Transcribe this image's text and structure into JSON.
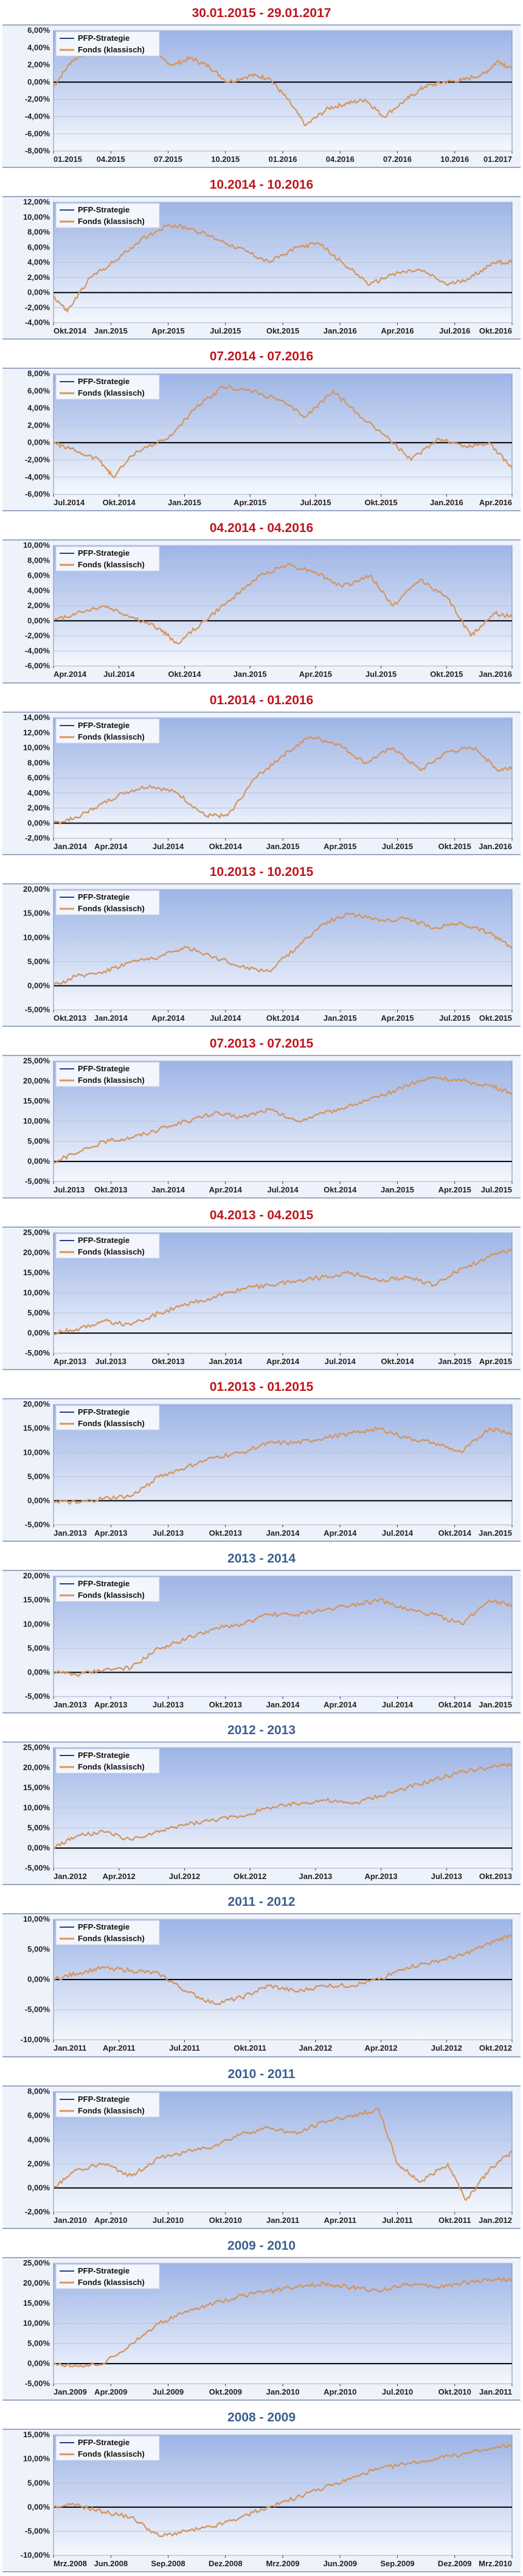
{
  "colors": {
    "strategy": "#1f3f8f",
    "fonds": "#d9955a",
    "plot_top": "#9db4e6",
    "plot_bottom": "#f4f7fd",
    "title_red": "#c0141c",
    "title_blue": "#3b5f8f"
  },
  "legend": {
    "strategy": "PFP-Strategie",
    "fonds": "Fonds (klassisch)"
  },
  "chart_data": [
    {
      "type": "line",
      "title": "30.01.2015 - 29.01.2017",
      "title_color": "red",
      "yticks": [
        "6,00%",
        "4,00%",
        "2,00%",
        "0,00%",
        "-2,00%",
        "-4,00%",
        "-6,00%",
        "-8,00%"
      ],
      "ylim": [
        -8,
        6
      ],
      "xticks": [
        "01.2015",
        "04.2015",
        "07.2015",
        "10.2015",
        "01.2016",
        "04.2016",
        "07.2016",
        "10.2016",
        "01.2017"
      ],
      "series": [
        {
          "name": "Fonds (klassisch)",
          "x": [
            0,
            0.04,
            0.09,
            0.13,
            0.17,
            0.21,
            0.26,
            0.3,
            0.34,
            0.38,
            0.43,
            0.47,
            0.51,
            0.55,
            0.6,
            0.64,
            0.68,
            0.72,
            0.77,
            0.81,
            0.85,
            0.89,
            0.94,
            0.97,
            1.0
          ],
          "values": [
            -0.5,
            2.5,
            4.0,
            4.5,
            3.8,
            3.5,
            2.0,
            2.8,
            1.8,
            0.0,
            0.8,
            0.5,
            -2.0,
            -5.0,
            -3.0,
            -2.5,
            -2.0,
            -4.0,
            -2.0,
            -0.5,
            0.0,
            0.2,
            1.0,
            2.5,
            1.5
          ]
        }
      ]
    },
    {
      "type": "line",
      "title": "10.2014 - 10.2016",
      "title_color": "red",
      "yticks": [
        "12,00%",
        "10,00%",
        "8,00%",
        "6,00%",
        "4,00%",
        "2,00%",
        "0,00%",
        "-2,00%",
        "-4,00%"
      ],
      "ylim": [
        -4,
        12
      ],
      "xticks": [
        "Okt.2014",
        "Jan.2015",
        "Apr.2015",
        "Jul.2015",
        "Okt.2015",
        "Jan.2016",
        "Apr.2016",
        "Jul.2016",
        "Okt.2016"
      ],
      "series": [
        {
          "name": "Fonds (klassisch)",
          "x": [
            0,
            0.03,
            0.08,
            0.13,
            0.19,
            0.25,
            0.3,
            0.36,
            0.42,
            0.47,
            0.53,
            0.58,
            0.63,
            0.69,
            0.74,
            0.8,
            0.86,
            0.91,
            0.96,
            1.0
          ],
          "values": [
            -0.5,
            -2.5,
            2.0,
            4.0,
            7.0,
            9.0,
            8.5,
            7.0,
            5.5,
            4.0,
            6.0,
            6.5,
            4.0,
            1.0,
            2.5,
            3.0,
            1.0,
            2.0,
            4.0,
            4.0
          ]
        }
      ]
    },
    {
      "type": "line",
      "title": "07.2014 - 07.2016",
      "title_color": "red",
      "yticks": [
        "8,00%",
        "6,00%",
        "4,00%",
        "2,00%",
        "0,00%",
        "-2,00%",
        "-4,00%",
        "-6,00%"
      ],
      "ylim": [
        -6,
        8
      ],
      "xticks": [
        "Jul.2014",
        "Okt.2014",
        "Jan.2015",
        "Apr.2015",
        "Jul.2015",
        "Okt.2015",
        "Jan.2016",
        "Apr.2016"
      ],
      "series": [
        {
          "name": "Fonds (klassisch)",
          "x": [
            0,
            0.05,
            0.1,
            0.13,
            0.18,
            0.25,
            0.31,
            0.37,
            0.43,
            0.49,
            0.55,
            0.61,
            0.66,
            0.72,
            0.78,
            0.84,
            0.9,
            0.95,
            1.0
          ],
          "values": [
            0.0,
            -1.0,
            -2.0,
            -4.0,
            -1.0,
            0.5,
            4.0,
            6.5,
            6.0,
            5.0,
            3.0,
            6.0,
            3.5,
            1.0,
            -2.0,
            0.5,
            -0.5,
            0.0,
            -3.0
          ]
        }
      ]
    },
    {
      "type": "line",
      "title": "04.2014 - 04.2016",
      "title_color": "red",
      "yticks": [
        "10,00%",
        "8,00%",
        "6,00%",
        "4,00%",
        "2,00%",
        "0,00%",
        "-2,00%",
        "-4,00%",
        "-6,00%"
      ],
      "ylim": [
        -6,
        10
      ],
      "xticks": [
        "Apr.2014",
        "Jul.2014",
        "Okt.2014",
        "Jan.2015",
        "Apr.2015",
        "Jul.2015",
        "Okt.2015",
        "Jan.2016"
      ],
      "series": [
        {
          "name": "Fonds (klassisch)",
          "x": [
            0,
            0.05,
            0.11,
            0.17,
            0.23,
            0.27,
            0.33,
            0.39,
            0.45,
            0.51,
            0.57,
            0.63,
            0.69,
            0.74,
            0.8,
            0.86,
            0.91,
            0.96,
            1.0
          ],
          "values": [
            0.0,
            1.0,
            2.0,
            0.5,
            -1.0,
            -3.0,
            0.0,
            3.0,
            6.0,
            7.5,
            6.5,
            4.5,
            6.0,
            2.0,
            5.5,
            3.0,
            -2.0,
            1.0,
            0.5
          ]
        }
      ]
    },
    {
      "type": "line",
      "title": "01.2014 - 01.2016",
      "title_color": "red",
      "yticks": [
        "14,00%",
        "12,00%",
        "10,00%",
        "8,00%",
        "6,00%",
        "4,00%",
        "2,00%",
        "0,00%",
        "-2,00%"
      ],
      "ylim": [
        -2,
        14
      ],
      "xticks": [
        "Jan.2014",
        "Apr.2014",
        "Jul.2014",
        "Okt.2014",
        "Jan.2015",
        "Apr.2015",
        "Jul.2015",
        "Okt.2015",
        "Jan.2016"
      ],
      "series": [
        {
          "name": "Fonds (klassisch)",
          "x": [
            0,
            0.04,
            0.09,
            0.15,
            0.21,
            0.27,
            0.33,
            0.38,
            0.44,
            0.5,
            0.56,
            0.62,
            0.68,
            0.74,
            0.8,
            0.86,
            0.92,
            0.97,
            1.0
          ],
          "values": [
            0.0,
            0.5,
            2.0,
            4.0,
            5.0,
            4.0,
            1.0,
            1.0,
            6.0,
            9.0,
            11.5,
            10.5,
            8.0,
            10.0,
            7.0,
            9.5,
            10.0,
            7.0,
            7.5
          ]
        }
      ]
    },
    {
      "type": "line",
      "title": "10.2013 - 10.2015",
      "title_color": "red",
      "yticks": [
        "20,00%",
        "15,00%",
        "10,00%",
        "5,00%",
        "0,00%",
        "-5,00%"
      ],
      "ylim": [
        -5,
        20
      ],
      "xticks": [
        "Okt.2013",
        "Jan.2014",
        "Apr.2014",
        "Jul.2014",
        "Okt.2014",
        "Jan.2015",
        "Apr.2015",
        "Jul.2015",
        "Okt.2015"
      ],
      "series": [
        {
          "name": "Fonds (klassisch)",
          "x": [
            0,
            0.05,
            0.11,
            0.17,
            0.23,
            0.29,
            0.35,
            0.41,
            0.47,
            0.53,
            0.59,
            0.65,
            0.71,
            0.77,
            0.83,
            0.89,
            0.95,
            1.0
          ],
          "values": [
            0.0,
            2.0,
            3.0,
            5.0,
            6.0,
            8.0,
            6.0,
            4.0,
            3.0,
            8.0,
            13.0,
            15.0,
            13.5,
            14.0,
            12.0,
            13.0,
            11.0,
            8.0
          ]
        }
      ]
    },
    {
      "type": "line",
      "title": "07.2013 - 07.2015",
      "title_color": "red",
      "yticks": [
        "25,00%",
        "20,00%",
        "15,00%",
        "10,00%",
        "5,00%",
        "0,00%",
        "-5,00%"
      ],
      "ylim": [
        -5,
        25
      ],
      "xticks": [
        "Jul.2013",
        "Okt.2013",
        "Jan.2014",
        "Apr.2014",
        "Jul.2014",
        "Okt.2014",
        "Jan.2015",
        "Apr.2015",
        "Jul.2015"
      ],
      "series": [
        {
          "name": "Fonds (klassisch)",
          "x": [
            0,
            0.05,
            0.11,
            0.17,
            0.23,
            0.29,
            0.35,
            0.41,
            0.47,
            0.53,
            0.59,
            0.65,
            0.71,
            0.77,
            0.83,
            0.89,
            0.95,
            1.0
          ],
          "values": [
            0.0,
            2.0,
            5.0,
            6.0,
            8.0,
            10.0,
            12.0,
            11.0,
            13.0,
            10.0,
            12.0,
            14.0,
            16.0,
            19.0,
            21.0,
            20.0,
            19.0,
            17.0
          ]
        }
      ]
    },
    {
      "type": "line",
      "title": "04.2013 - 04.2015",
      "title_color": "red",
      "yticks": [
        "25,00%",
        "20,00%",
        "15,00%",
        "10,00%",
        "5,00%",
        "0,00%",
        "-5,00%"
      ],
      "ylim": [
        -5,
        25
      ],
      "xticks": [
        "Apr.2013",
        "Jul.2013",
        "Okt.2013",
        "Jan.2014",
        "Apr.2014",
        "Jul.2014",
        "Okt.2014",
        "Jan.2015",
        "Apr.2015"
      ],
      "series": [
        {
          "name": "Fonds (klassisch)",
          "x": [
            0,
            0.05,
            0.11,
            0.17,
            0.23,
            0.29,
            0.35,
            0.41,
            0.47,
            0.53,
            0.59,
            0.65,
            0.71,
            0.77,
            0.83,
            0.89,
            0.95,
            1.0
          ],
          "values": [
            0.0,
            1.0,
            3.0,
            2.0,
            5.0,
            7.0,
            9.0,
            11.0,
            12.0,
            13.0,
            14.0,
            15.0,
            13.0,
            14.0,
            12.0,
            16.0,
            19.0,
            21.0
          ]
        }
      ]
    },
    {
      "type": "line",
      "title": "01.2013 - 01.2015",
      "title_color": "red",
      "yticks": [
        "20,00%",
        "15,00%",
        "10,00%",
        "5,00%",
        "0,00%",
        "-5,00%"
      ],
      "ylim": [
        -5,
        20
      ],
      "xticks": [
        "Jan.2013",
        "Apr.2013",
        "Jul.2013",
        "Okt.2013",
        "Jan.2014",
        "Apr.2014",
        "Jul.2014",
        "Okt.2014",
        "Jan.2015"
      ],
      "series": [
        {
          "name": "Fonds (klassisch)",
          "x": [
            0,
            0.05,
            0.11,
            0.17,
            0.23,
            0.29,
            0.35,
            0.41,
            0.47,
            0.53,
            0.59,
            0.65,
            0.71,
            0.77,
            0.83,
            0.89,
            0.95,
            1.0
          ],
          "values": [
            0.0,
            -0.5,
            0.5,
            1.0,
            5.0,
            7.0,
            9.0,
            10.0,
            12.0,
            12.0,
            13.0,
            14.0,
            15.0,
            13.0,
            12.0,
            10.0,
            15.0,
            14.0
          ]
        }
      ]
    },
    {
      "type": "line",
      "title": "2013 - 2014",
      "title_color": "blue",
      "yticks": [
        "20,00%",
        "15,00%",
        "10,00%",
        "5,00%",
        "0,00%",
        "-5,00%"
      ],
      "ylim": [
        -5,
        20
      ],
      "xticks": [
        "Jan.2013",
        "Apr.2013",
        "Jul.2013",
        "Okt.2013",
        "Jan.2014",
        "Apr.2014",
        "Jul.2014",
        "Okt.2014",
        "Jan.2015"
      ],
      "series": [
        {
          "name": "Fonds (klassisch)",
          "x": [
            0,
            0.05,
            0.11,
            0.17,
            0.23,
            0.29,
            0.35,
            0.41,
            0.47,
            0.53,
            0.59,
            0.65,
            0.71,
            0.77,
            0.83,
            0.89,
            0.95,
            1.0
          ],
          "values": [
            0.0,
            -0.5,
            0.5,
            1.0,
            5.0,
            7.0,
            9.0,
            10.0,
            12.0,
            12.0,
            13.0,
            14.0,
            15.0,
            13.0,
            12.0,
            10.0,
            15.0,
            14.0
          ]
        }
      ]
    },
    {
      "type": "line",
      "title": "2012 - 2013",
      "title_color": "blue",
      "yticks": [
        "25,00%",
        "20,00%",
        "15,00%",
        "10,00%",
        "5,00%",
        "0,00%",
        "-5,00%"
      ],
      "ylim": [
        -5,
        25
      ],
      "xticks": [
        "Jan.2012",
        "Apr.2012",
        "Jul.2012",
        "Okt.2012",
        "Jan.2013",
        "Apr.2013",
        "Jul.2013",
        "Okt.2013"
      ],
      "series": [
        {
          "name": "Fonds (klassisch)",
          "x": [
            0,
            0.05,
            0.11,
            0.17,
            0.23,
            0.29,
            0.35,
            0.41,
            0.47,
            0.53,
            0.59,
            0.65,
            0.71,
            0.77,
            0.83,
            0.89,
            0.95,
            1.0
          ],
          "values": [
            0.0,
            3.0,
            4.0,
            2.0,
            4.0,
            6.0,
            7.0,
            8.0,
            10.0,
            11.0,
            12.0,
            11.0,
            13.0,
            15.0,
            17.0,
            19.0,
            20.0,
            21.0
          ]
        }
      ]
    },
    {
      "type": "line",
      "title": "2011 - 2012",
      "title_color": "blue",
      "yticks": [
        "10,00%",
        "5,00%",
        "0,00%",
        "-5,00%",
        "-10,00%"
      ],
      "ylim": [
        -10,
        10
      ],
      "xticks": [
        "Jan.2011",
        "Apr.2011",
        "Jul.2011",
        "Okt.2011",
        "Jan.2012",
        "Apr.2012",
        "Jul.2012",
        "Okt.2012"
      ],
      "series": [
        {
          "name": "Fonds (klassisch)",
          "x": [
            0,
            0.05,
            0.11,
            0.17,
            0.23,
            0.29,
            0.35,
            0.41,
            0.47,
            0.53,
            0.59,
            0.65,
            0.71,
            0.77,
            0.83,
            0.89,
            0.95,
            1.0
          ],
          "values": [
            0.0,
            1.0,
            2.0,
            1.5,
            1.0,
            -2.0,
            -4.0,
            -3.0,
            -1.0,
            -2.0,
            -1.0,
            -1.0,
            0.0,
            2.0,
            3.0,
            4.0,
            6.0,
            7.5
          ]
        }
      ]
    },
    {
      "type": "line",
      "title": "2010 - 2011",
      "title_color": "blue",
      "yticks": [
        "8,00%",
        "6,00%",
        "4,00%",
        "2,00%",
        "0,00%",
        "-2,00%"
      ],
      "ylim": [
        -2,
        8
      ],
      "xticks": [
        "Jan.2010",
        "Apr.2010",
        "Jul.2010",
        "Okt.2010",
        "Jan.2011",
        "Apr.2011",
        "Jul.2011",
        "Okt.2011",
        "Jan.2012"
      ],
      "series": [
        {
          "name": "Fonds (klassisch)",
          "x": [
            0,
            0.05,
            0.11,
            0.17,
            0.23,
            0.29,
            0.35,
            0.41,
            0.47,
            0.53,
            0.59,
            0.65,
            0.71,
            0.75,
            0.8,
            0.86,
            0.9,
            0.95,
            1.0
          ],
          "values": [
            0.0,
            1.5,
            2.0,
            1.0,
            2.5,
            3.0,
            3.5,
            4.5,
            5.0,
            4.5,
            5.5,
            6.0,
            6.5,
            2.0,
            0.5,
            2.0,
            -1.0,
            1.5,
            3.0
          ]
        }
      ]
    },
    {
      "type": "line",
      "title": "2009 - 2010",
      "title_color": "blue",
      "yticks": [
        "25,00%",
        "20,00%",
        "15,00%",
        "10,00%",
        "5,00%",
        "0,00%",
        "-5,00%"
      ],
      "ylim": [
        -5,
        25
      ],
      "xticks": [
        "Jan.2009",
        "Apr.2009",
        "Jul.2009",
        "Okt.2009",
        "Jan.2010",
        "Apr.2010",
        "Jul.2010",
        "Okt.2010",
        "Jan.2011"
      ],
      "series": [
        {
          "name": "Fonds (klassisch)",
          "x": [
            0,
            0.05,
            0.11,
            0.17,
            0.23,
            0.29,
            0.35,
            0.41,
            0.47,
            0.53,
            0.59,
            0.65,
            0.71,
            0.77,
            0.83,
            0.89,
            0.95,
            1.0
          ],
          "values": [
            0.0,
            -0.5,
            0.0,
            5.0,
            10.0,
            13.0,
            15.0,
            17.0,
            18.0,
            19.0,
            20.0,
            19.0,
            18.0,
            20.0,
            19.0,
            20.0,
            21.0,
            21.0
          ]
        }
      ]
    },
    {
      "type": "line",
      "title": "2008 - 2009",
      "title_color": "blue",
      "yticks": [
        "15,00%",
        "10,00%",
        "5,00%",
        "0,00%",
        "-5,00%",
        "-10,00%"
      ],
      "ylim": [
        -10,
        15
      ],
      "xticks": [
        "Mrz.2008",
        "Jun.2008",
        "Sep.2008",
        "Dez.2008",
        "Mrz.2009",
        "Jun.2009",
        "Sep.2009",
        "Dez.2009",
        "Mrz.2010"
      ],
      "series": [
        {
          "name": "Fonds (klassisch)",
          "x": [
            0,
            0.05,
            0.11,
            0.17,
            0.23,
            0.29,
            0.35,
            0.41,
            0.47,
            0.53,
            0.59,
            0.65,
            0.71,
            0.77,
            0.83,
            0.89,
            0.95,
            1.0
          ],
          "values": [
            0.0,
            0.5,
            -1.0,
            -2.0,
            -6.0,
            -5.0,
            -4.0,
            -2.0,
            0.0,
            2.0,
            4.0,
            6.0,
            8.0,
            9.0,
            10.0,
            11.0,
            12.0,
            13.0
          ]
        }
      ]
    }
  ]
}
